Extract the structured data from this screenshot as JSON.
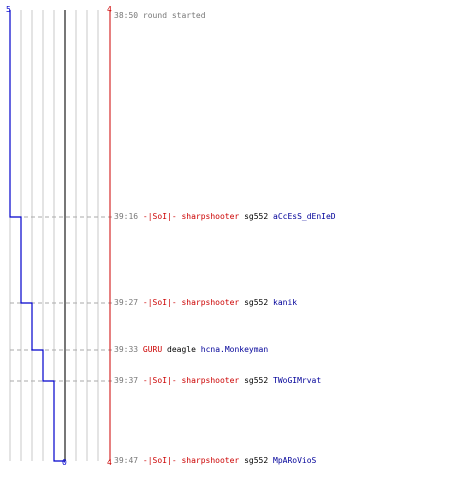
{
  "timeline": {
    "start_count": 5,
    "right_count_top": 4,
    "right_count_bottom": 4,
    "left_bottom_count": 0,
    "colors": {
      "axis": "#cc0000",
      "line": "#0000cc",
      "grid": "#c8c8c8",
      "divider": "#777777",
      "dash": "#aaaaaa"
    }
  },
  "events": [
    {
      "time": "38:50",
      "text": "round started"
    },
    {
      "time": "39:16",
      "killer": "-|SoI|- sharpshooter",
      "weapon": "sg552",
      "victim": "aCcEsS_dEnIeD",
      "remaining": 4
    },
    {
      "time": "39:27",
      "killer": "-|SoI|- sharpshooter",
      "weapon": "sg552",
      "victim": "kanik",
      "remaining": 3
    },
    {
      "time": "39:33",
      "killer": "GURU",
      "weapon": "deagle",
      "victim": "hcna.Monkeyman",
      "remaining": 2
    },
    {
      "time": "39:37",
      "killer": "-|SoI|- sharpshooter",
      "weapon": "sg552",
      "victim": "TWoGIMrvat",
      "remaining": 1
    },
    {
      "time": "39:47",
      "killer": "-|SoI|- sharpshooter",
      "weapon": "sg552",
      "victim": "MpARoVioS",
      "remaining": 0
    }
  ]
}
